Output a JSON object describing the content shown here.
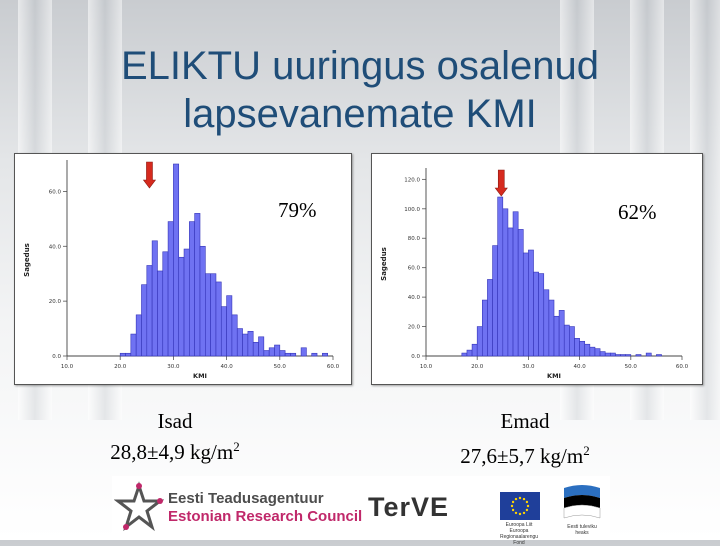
{
  "slide": {
    "title_line1": "ELIKTU uuringus osalenud",
    "title_line2": "lapsevanemate KMI"
  },
  "left_group": {
    "percent": "79%",
    "label": "Isad",
    "stat_main": "28,8±4,9 kg/m",
    "stat_sup": "2"
  },
  "right_group": {
    "percent": "62%",
    "label": "Emad",
    "stat_main": "27,6±5,7 kg/m",
    "stat_sup": "2"
  },
  "logos": {
    "etag_et": "Eesti Teadusagentuur",
    "etag_en": "Estonian Research Council",
    "terve": "TerVE",
    "eu_caption": "Euroopa Liit Euroopa Regionaalarengu Fond",
    "est_caption": "Eesti tuleviku heaks"
  },
  "colors": {
    "title": "#1f4d78",
    "bar_fill": "#6f72f2",
    "bar_stroke": "#3434b8",
    "arrow": "#d62a1e"
  },
  "chart_data": [
    {
      "type": "bar",
      "title": "",
      "xlabel": "KMI",
      "ylabel": "Sagedus",
      "xlim": [
        10,
        60
      ],
      "ylim": [
        0,
        70
      ],
      "xticks": [
        "10.0",
        "20.0",
        "30.0",
        "40.0",
        "50.0",
        "60.0"
      ],
      "yticks": [
        "0.0",
        "20.0",
        "40.0",
        "60.0"
      ],
      "ytick_values": [
        0,
        20,
        40,
        60
      ],
      "bin_start": 20,
      "bin_width": 1,
      "values": [
        1,
        1,
        8,
        15,
        26,
        33,
        42,
        31,
        38,
        49,
        70,
        36,
        39,
        49,
        52,
        40,
        30,
        30,
        27,
        18,
        22,
        15,
        10,
        8,
        9,
        5,
        7,
        2,
        3,
        4,
        2,
        1,
        1,
        0,
        3,
        0,
        1,
        0,
        1
      ],
      "arrow_x": 25.5
    },
    {
      "type": "bar",
      "title": "",
      "xlabel": "KMI",
      "ylabel": "Sagedus",
      "xlim": [
        10,
        60
      ],
      "ylim": [
        0,
        125
      ],
      "xticks": [
        "10.0",
        "20.0",
        "30.0",
        "40.0",
        "50.0",
        "60.0"
      ],
      "yticks": [
        "0.0",
        "20.0",
        "40.0",
        "60.0",
        "80.0",
        "100.0",
        "120.0"
      ],
      "ytick_values": [
        0,
        20,
        40,
        60,
        80,
        100,
        120
      ],
      "bin_start": 17,
      "bin_width": 1,
      "values": [
        2,
        4,
        8,
        20,
        38,
        52,
        75,
        108,
        100,
        87,
        98,
        86,
        70,
        72,
        57,
        56,
        45,
        38,
        27,
        31,
        21,
        20,
        12,
        10,
        8,
        6,
        5,
        3,
        2,
        2,
        1,
        1,
        1,
        0,
        1,
        0,
        2,
        0,
        1
      ],
      "arrow_x": 24.7
    }
  ]
}
